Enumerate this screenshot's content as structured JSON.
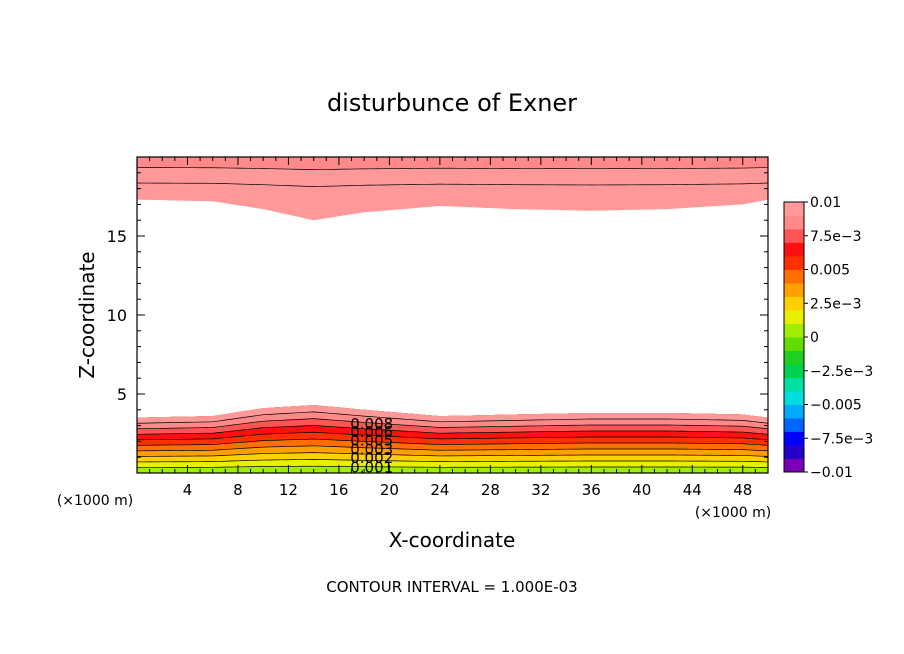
{
  "chart_data": {
    "type": "heatmap",
    "title": "disturbunce of Exner",
    "xlabel": "X-coordinate",
    "ylabel": "Z-coordinate",
    "x_unit_left": "(×1000 m)",
    "x_unit_right": "(×1000 m)",
    "xlim": [
      0,
      50
    ],
    "ylim": [
      0,
      20
    ],
    "x_ticks": [
      "4",
      "8",
      "12",
      "16",
      "20",
      "24",
      "28",
      "32",
      "36",
      "40",
      "44",
      "48"
    ],
    "y_ticks": [
      "5",
      "10",
      "15"
    ],
    "footer": "CONTOUR INTERVAL = 1.000E-03",
    "colorbar": {
      "labels": [
        "0.01",
        "7.5e-3",
        "0.005",
        "2.5e-3",
        "0",
        "-2.5e-3",
        "-0.005",
        "-7.5e-3",
        "-0.01"
      ],
      "range": [
        -0.01,
        0.01
      ],
      "colors": [
        "#7a00b8",
        "#2800cc",
        "#0000ff",
        "#0066ff",
        "#00aaff",
        "#00dddd",
        "#00e0a0",
        "#00d050",
        "#20d020",
        "#60dd00",
        "#a0ee00",
        "#e8f000",
        "#ffd000",
        "#ffa000",
        "#ff7000",
        "#ff3000",
        "#ff1010",
        "#ff5555",
        "#ff8888",
        "#ff9999"
      ]
    },
    "contour_labels": [
      "0.008",
      "0.006",
      "0.005",
      "0.003",
      "0.002",
      "0.001"
    ],
    "lower_layer": {
      "x": [
        0,
        6,
        10,
        14,
        18,
        24,
        30,
        36,
        42,
        48,
        50
      ],
      "top_z": [
        3.5,
        3.6,
        4.1,
        4.3,
        4.0,
        3.6,
        3.7,
        3.8,
        3.8,
        3.7,
        3.5
      ],
      "bands": [
        {
          "value": 0.0005,
          "frac": 0.0
        },
        {
          "value": 0.0015,
          "frac": 0.1
        },
        {
          "value": 0.0025,
          "frac": 0.2
        },
        {
          "value": 0.0035,
          "frac": 0.3
        },
        {
          "value": 0.0045,
          "frac": 0.4
        },
        {
          "value": 0.0055,
          "frac": 0.5
        },
        {
          "value": 0.0065,
          "frac": 0.6
        },
        {
          "value": 0.0075,
          "frac": 0.7
        },
        {
          "value": 0.0085,
          "frac": 0.8
        },
        {
          "value": 0.0095,
          "frac": 0.9
        }
      ]
    },
    "upper_layer": {
      "x": [
        0,
        6,
        10,
        14,
        18,
        24,
        30,
        36,
        42,
        48,
        50
      ],
      "bottom_z": [
        17.3,
        17.2,
        16.7,
        16.0,
        16.5,
        16.9,
        16.7,
        16.6,
        16.7,
        17.0,
        17.3
      ],
      "bands": [
        {
          "value": 0.0099,
          "z": 0
        },
        {
          "value": 0.0093,
          "z": 18.3
        },
        {
          "value": 0.0085,
          "z": 19.3
        }
      ]
    }
  }
}
